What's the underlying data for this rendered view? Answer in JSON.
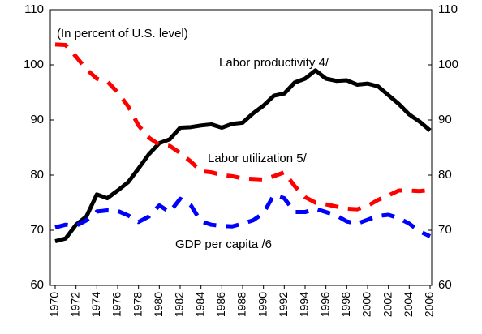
{
  "chart_data": {
    "type": "line",
    "subtitle": "(In percent of U.S. level)",
    "x": [
      1970,
      1971,
      1972,
      1973,
      1974,
      1975,
      1976,
      1977,
      1978,
      1979,
      1980,
      1981,
      1982,
      1983,
      1984,
      1985,
      1986,
      1987,
      1988,
      1989,
      1990,
      1991,
      1992,
      1993,
      1994,
      1995,
      1996,
      1997,
      1998,
      1999,
      2000,
      2001,
      2002,
      2003,
      2004,
      2005,
      2006
    ],
    "xlim": [
      1970,
      2006
    ],
    "xticks": [
      1970,
      1972,
      1974,
      1976,
      1978,
      1980,
      1982,
      1984,
      1986,
      1988,
      1990,
      1992,
      1994,
      1996,
      1998,
      2000,
      2002,
      2004,
      2006
    ],
    "ylim": [
      60,
      110
    ],
    "yticks": [
      60,
      70,
      80,
      90,
      100,
      110
    ],
    "y2lim": [
      60,
      110
    ],
    "y2ticks": [
      60,
      70,
      80,
      90,
      100,
      110
    ],
    "series": [
      {
        "name": "Labor productivity 4/",
        "color": "#000000",
        "dash": "solid",
        "values": [
          68,
          68.5,
          71,
          72.5,
          76.5,
          75.8,
          77.2,
          78.7,
          81.2,
          83.8,
          85.8,
          86.5,
          88.6,
          88.7,
          89,
          89.2,
          88.6,
          89.3,
          89.5,
          91.2,
          92.6,
          94.4,
          94.8,
          96.8,
          97.5,
          99,
          97.5,
          97.1,
          97.2,
          96.4,
          96.6,
          96.1,
          94.5,
          92.9,
          91,
          89.7,
          88.1
        ]
      },
      {
        "name": "Labor utilization 5/",
        "color": "#ff0000",
        "dash": "dashed",
        "values": [
          103.7,
          103.6,
          101.5,
          99.2,
          97.5,
          97,
          95,
          92.5,
          89,
          86.8,
          85.5,
          85.3,
          84,
          82.5,
          80.7,
          80.5,
          80,
          79.8,
          79.4,
          79.3,
          79.2,
          79.8,
          80.5,
          78,
          76,
          75,
          74.7,
          74.3,
          73.9,
          73.8,
          74.4,
          75.5,
          76.3,
          77.2,
          77.2,
          77.1,
          77.3
        ]
      },
      {
        "name": "GDP per capita /6",
        "color": "#0000ff",
        "dash": "dashed",
        "values": [
          70.5,
          71,
          70.8,
          71.8,
          73.4,
          73.6,
          73.5,
          72.7,
          71.5,
          72.5,
          74.5,
          73.3,
          75.7,
          74.6,
          71.6,
          71,
          70.8,
          70.7,
          71.2,
          71.8,
          73.1,
          76.4,
          75.8,
          73.3,
          73.3,
          73.9,
          73.3,
          72.7,
          71.6,
          71.2,
          71.9,
          72.6,
          72.8,
          72.2,
          71.2,
          69.8,
          68.9
        ]
      }
    ]
  }
}
